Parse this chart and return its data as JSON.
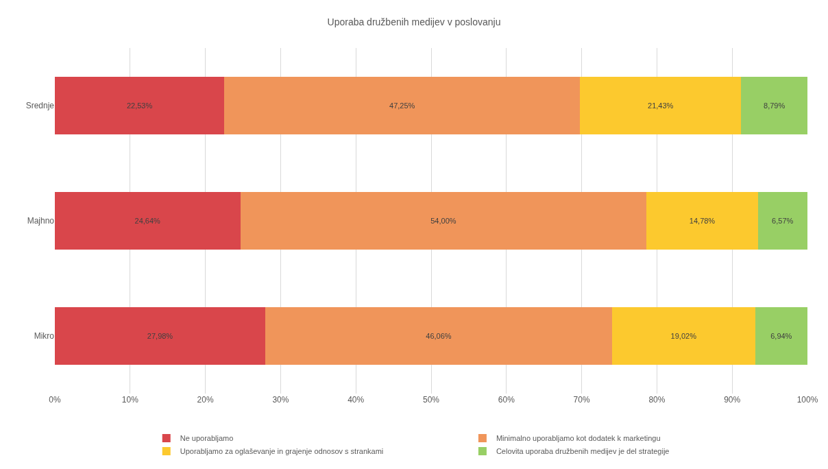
{
  "chart_data": {
    "type": "bar",
    "orientation": "horizontal",
    "stacked": true,
    "title": "Uporaba družbenih medijev v poslovanju",
    "categories": [
      "Srednje",
      "Majhno",
      "Mikro"
    ],
    "series": [
      {
        "name": "Ne uporabljamo",
        "color": "#d9464b",
        "values": [
          22.53,
          24.64,
          27.98
        ],
        "value_labels": [
          "22,53%",
          "24,64%",
          "27,98%"
        ]
      },
      {
        "name": "Minimalno uporabljamo kot dodatek k marketingu",
        "color": "#f0955a",
        "values": [
          47.25,
          54.0,
          46.06
        ],
        "value_labels": [
          "47,25%",
          "54,00%",
          "46,06%"
        ]
      },
      {
        "name": "Uporabljamo za oglaševanje in grajenje odnosov s strankami",
        "color": "#fcc92e",
        "values": [
          21.43,
          14.78,
          19.02
        ],
        "value_labels": [
          "21,43%",
          "14,78%",
          "19,02%"
        ]
      },
      {
        "name": "Celovita uporaba družbenih medijev je del strategije",
        "color": "#98cf65",
        "values": [
          8.79,
          6.57,
          6.94
        ],
        "value_labels": [
          "8,79%",
          "6,57%",
          "6,94%"
        ]
      }
    ],
    "xlim": [
      0,
      100
    ],
    "xticks": [
      {
        "value": 0,
        "label": "0%"
      },
      {
        "value": 10,
        "label": "10%"
      },
      {
        "value": 20,
        "label": "20%"
      },
      {
        "value": 30,
        "label": "30%"
      },
      {
        "value": 40,
        "label": "40%"
      },
      {
        "value": 50,
        "label": "50%"
      },
      {
        "value": 60,
        "label": "60%"
      },
      {
        "value": 70,
        "label": "70%"
      },
      {
        "value": 80,
        "label": "80%"
      },
      {
        "value": 90,
        "label": "90%"
      },
      {
        "value": 100,
        "label": "100%"
      }
    ],
    "grid": "x",
    "legend": "bottom"
  }
}
